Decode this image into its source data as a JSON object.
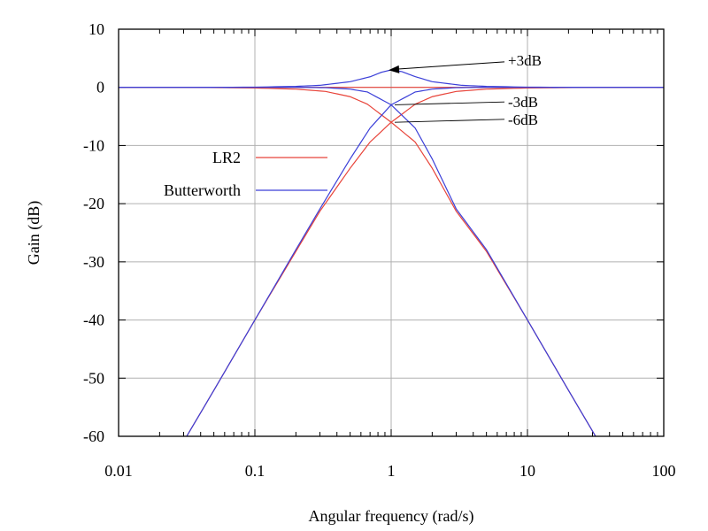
{
  "chart_data": {
    "type": "line",
    "xlabel": "Angular frequency (rad/s)",
    "ylabel": "Gain (dB)",
    "xscale": "log",
    "xlim": [
      0.01,
      100
    ],
    "ylim": [
      -60,
      10
    ],
    "grid": true,
    "legend_placement": "left",
    "x_ticks": [
      {
        "value": 0.01,
        "label": "0.01"
      },
      {
        "value": 0.1,
        "label": "0.1"
      },
      {
        "value": 1,
        "label": "1"
      },
      {
        "value": 10,
        "label": "10"
      },
      {
        "value": 100,
        "label": "100"
      }
    ],
    "y_ticks": [
      {
        "value": 10,
        "label": "10"
      },
      {
        "value": 0,
        "label": "0"
      },
      {
        "value": -10,
        "label": "-10"
      },
      {
        "value": -20,
        "label": "-20"
      },
      {
        "value": -30,
        "label": "-30"
      },
      {
        "value": -40,
        "label": "-40"
      },
      {
        "value": -50,
        "label": "-50"
      },
      {
        "value": -60,
        "label": "-60"
      }
    ],
    "legend": [
      {
        "label": "LR2",
        "color": "#e8443a"
      },
      {
        "label": "Butterworth",
        "color": "#3b3fd8"
      }
    ],
    "series": [
      {
        "legend": "LR2",
        "color": "#e8443a",
        "x": [
          0.0316,
          0.05,
          0.1,
          0.2,
          0.3,
          0.5,
          0.7,
          1,
          1.5,
          2,
          3,
          5,
          10,
          31.6,
          100
        ],
        "y": [
          -60,
          -52.1,
          -40,
          -28.2,
          -21.3,
          -13.9,
          -9.4,
          -6.0,
          -2.9,
          -1.6,
          -0.7,
          -0.3,
          -0.1,
          0,
          0
        ]
      },
      {
        "legend": "LR2",
        "color": "#e8443a",
        "x": [
          0.01,
          0.0316,
          0.1,
          0.2,
          0.33,
          0.5,
          0.67,
          1,
          1.5,
          2,
          3,
          5,
          10,
          20,
          31.6
        ],
        "y": [
          0,
          0,
          -0.1,
          -0.3,
          -0.7,
          -1.6,
          -2.9,
          -6.0,
          -9.4,
          -13.9,
          -21.3,
          -28.2,
          -40,
          -52.1,
          -60
        ]
      },
      {
        "legend": "LR2",
        "color": "#e8443a",
        "x": [
          0.01,
          100
        ],
        "y": [
          0,
          0
        ]
      },
      {
        "legend": "Butterworth",
        "color": "#3b3fd8",
        "x": [
          0.0316,
          0.05,
          0.1,
          0.2,
          0.3,
          0.5,
          0.7,
          1,
          1.5,
          2,
          3,
          5,
          10,
          31.6,
          100
        ],
        "y": [
          -60,
          -52.1,
          -40,
          -27.9,
          -20.9,
          -12.3,
          -7.0,
          -3.0,
          -0.8,
          -0.3,
          -0.05,
          0,
          0,
          0,
          0
        ]
      },
      {
        "legend": "Butterworth",
        "color": "#3b3fd8",
        "x": [
          0.01,
          0.0316,
          0.1,
          0.2,
          0.33,
          0.5,
          0.67,
          1,
          1.5,
          2,
          3,
          5,
          10,
          20,
          31.6
        ],
        "y": [
          0,
          0,
          0,
          0,
          -0.05,
          -0.3,
          -0.8,
          -3.0,
          -7.0,
          -12.3,
          -20.9,
          -27.9,
          -40,
          -52.1,
          -60
        ]
      },
      {
        "legend": "Butterworth",
        "color": "#3b3fd8",
        "x": [
          0.01,
          0.0316,
          0.1,
          0.2,
          0.3,
          0.5,
          0.7,
          0.85,
          1,
          1.2,
          1.5,
          2,
          3.3,
          5,
          10,
          31.6,
          100
        ],
        "y": [
          0,
          0,
          0.04,
          0.17,
          0.35,
          0.97,
          1.82,
          2.6,
          3.0,
          2.7,
          1.85,
          0.97,
          0.35,
          0.17,
          0.04,
          0,
          0
        ]
      }
    ],
    "markers": [
      {
        "x": 0.062,
        "y": 0,
        "color": "#3b3fd8"
      },
      {
        "x": 16,
        "y": 0,
        "color": "#3b3fd8"
      }
    ],
    "annotations": [
      {
        "text": "+3dB",
        "x": 1,
        "y": 3,
        "label_x": 7.2,
        "label_y": 4.7,
        "arrow": true
      },
      {
        "text": "-3dB",
        "x": 1,
        "y": -3,
        "label_x": 7.2,
        "label_y": -2.5,
        "arrow": false
      },
      {
        "text": "-6dB",
        "x": 1,
        "y": -6,
        "label_x": 7.2,
        "label_y": -5.5,
        "arrow": false
      }
    ]
  }
}
